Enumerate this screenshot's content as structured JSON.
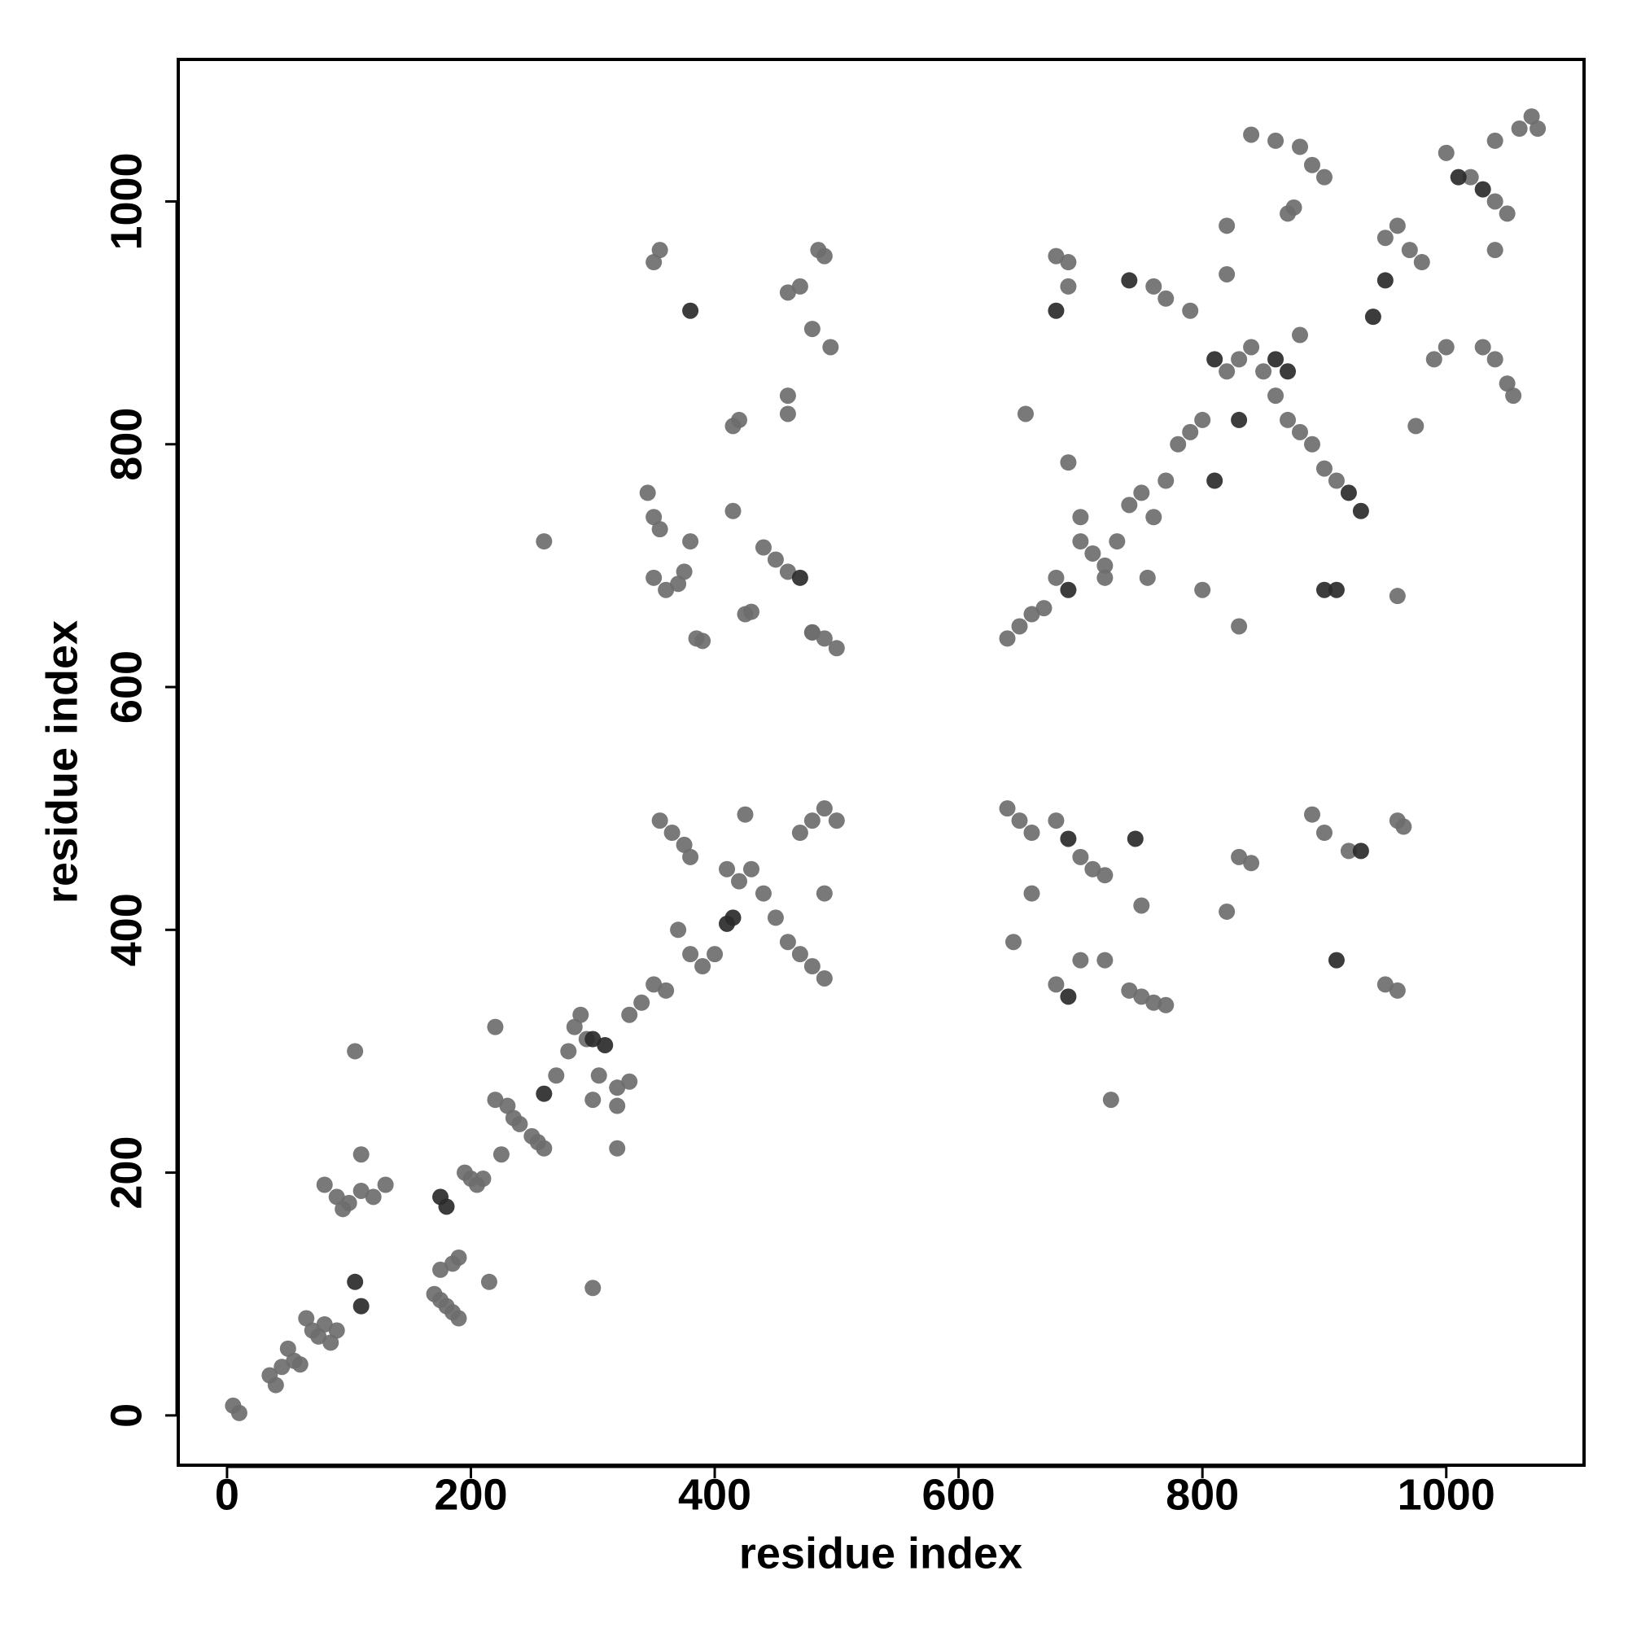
{
  "chart_data": {
    "type": "scatter",
    "xlabel": "residue index",
    "ylabel": "residue index",
    "xlim": [
      -40,
      1113
    ],
    "ylim": [
      -41,
      1117
    ],
    "xticks": [
      0,
      200,
      400,
      600,
      800,
      1000
    ],
    "yticks": [
      0,
      200,
      400,
      600,
      800,
      1000
    ],
    "series": [
      {
        "color": "#6e6e6e",
        "x": [
          5,
          10,
          35,
          40,
          45,
          50,
          55,
          60,
          65,
          70,
          75,
          80,
          85,
          90,
          105,
          110,
          80,
          90,
          95,
          100,
          110,
          120,
          130,
          170,
          175,
          180,
          185,
          190,
          190,
          185,
          175,
          195,
          200,
          205,
          210,
          215,
          225,
          220,
          230,
          235,
          240,
          250,
          255,
          260,
          220,
          270,
          280,
          285,
          290,
          295,
          305,
          320,
          330,
          300,
          320,
          320,
          300,
          330,
          340,
          350,
          360,
          355,
          365,
          375,
          380,
          370,
          380,
          390,
          400,
          420,
          410,
          430,
          440,
          450,
          460,
          470,
          480,
          490,
          470,
          480,
          490,
          500,
          425,
          490,
          640,
          650,
          660,
          670,
          680,
          700,
          710,
          720,
          730,
          740,
          750,
          760,
          770,
          780,
          790,
          800,
          820,
          830,
          840,
          850,
          860,
          870,
          880,
          890,
          900,
          910,
          950,
          960,
          970,
          980,
          1000,
          1020,
          1040,
          1050,
          1060,
          1070,
          1040,
          350,
          355,
          460,
          470,
          480,
          485,
          490,
          495,
          415,
          420,
          460,
          460,
          345,
          350,
          355,
          350,
          360,
          370,
          375,
          380,
          415,
          440,
          450,
          460,
          480,
          425,
          430,
          385,
          390,
          480,
          490,
          500,
          260,
          840,
          860,
          880,
          890,
          900,
          870,
          875,
          820,
          820,
          760,
          770,
          790,
          680,
          690,
          690,
          655,
          690,
          700,
          755,
          720,
          800,
          830,
          960,
          975,
          990,
          1000,
          1030,
          1040,
          1050,
          1055,
          1040,
          880,
          1075,
          640,
          650,
          660,
          680,
          700,
          710,
          720,
          645,
          660,
          680,
          700,
          720,
          740,
          750,
          760,
          770,
          750,
          725,
          820,
          830,
          840,
          890,
          900,
          920,
          950,
          960,
          960,
          965
        ],
        "y": [
          8,
          2,
          33,
          25,
          40,
          55,
          45,
          42,
          80,
          70,
          65,
          75,
          60,
          70,
          300,
          215,
          190,
          180,
          170,
          175,
          185,
          180,
          190,
          100,
          95,
          90,
          85,
          80,
          130,
          125,
          120,
          200,
          195,
          190,
          195,
          110,
          215,
          260,
          255,
          245,
          240,
          230,
          225,
          220,
          320,
          280,
          300,
          320,
          330,
          310,
          280,
          270,
          275,
          105,
          220,
          255,
          260,
          330,
          340,
          355,
          350,
          490,
          480,
          470,
          460,
          400,
          380,
          370,
          380,
          440,
          450,
          450,
          430,
          410,
          390,
          380,
          370,
          360,
          480,
          490,
          500,
          490,
          495,
          430,
          640,
          650,
          660,
          665,
          690,
          720,
          710,
          700,
          720,
          750,
          760,
          740,
          770,
          800,
          810,
          820,
          860,
          870,
          880,
          860,
          840,
          820,
          810,
          800,
          780,
          770,
          970,
          980,
          960,
          950,
          1040,
          1020,
          1000,
          990,
          1060,
          1070,
          1050,
          950,
          960,
          925,
          930,
          895,
          960,
          955,
          880,
          815,
          820,
          840,
          825,
          760,
          740,
          730,
          690,
          680,
          685,
          695,
          720,
          745,
          715,
          705,
          695,
          645,
          660,
          662,
          640,
          638,
          645,
          640,
          632,
          720,
          1055,
          1050,
          1045,
          1030,
          1020,
          990,
          995,
          980,
          940,
          930,
          920,
          910,
          955,
          950,
          930,
          825,
          785,
          740,
          690,
          690,
          680,
          650,
          675,
          815,
          870,
          880,
          880,
          870,
          850,
          840,
          960,
          890,
          1060,
          500,
          490,
          480,
          490,
          460,
          450,
          445,
          390,
          430,
          355,
          375,
          375,
          350,
          345,
          340,
          338,
          420,
          260,
          415,
          460,
          455,
          495,
          480,
          465,
          355,
          350,
          490,
          485
        ]
      },
      {
        "color": "#2b2b2b",
        "x": [
          410,
          415,
          105,
          110,
          260,
          300,
          310,
          180,
          175,
          470,
          680,
          740,
          810,
          830,
          860,
          900,
          910,
          920,
          930,
          940,
          950,
          1010,
          1030,
          810,
          870,
          930,
          910,
          380,
          690,
          690,
          690,
          745
        ],
        "y": [
          405,
          410,
          110,
          90,
          265,
          310,
          305,
          172,
          180,
          690,
          910,
          935,
          870,
          820,
          870,
          680,
          680,
          760,
          745,
          905,
          935,
          1020,
          1010,
          770,
          860,
          465,
          375,
          910,
          680,
          475,
          345,
          475
        ]
      }
    ]
  }
}
